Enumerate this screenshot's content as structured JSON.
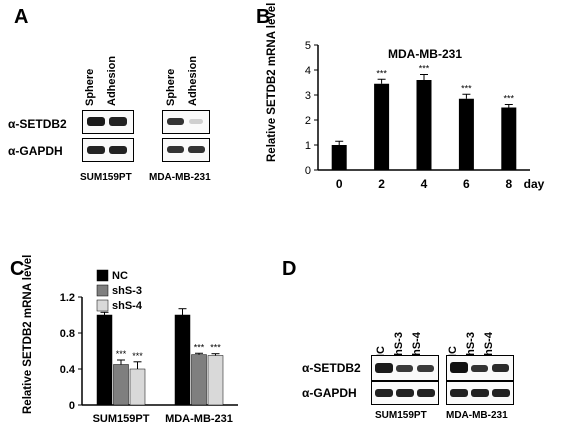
{
  "panels": {
    "A": {
      "letter": "A",
      "col_labels": [
        "Sphere",
        "Adhesion",
        "Sphere",
        "Adhesion"
      ],
      "row_labels": [
        "α-SETDB2",
        "α-GAPDH"
      ],
      "group_labels": [
        "SUM159PT",
        "MDA-MB-231"
      ]
    },
    "B": {
      "letter": "B"
    },
    "C": {
      "letter": "C"
    },
    "D": {
      "letter": "D",
      "col_labels": [
        "NC",
        "shS-3",
        "shS-4",
        "NC",
        "shS-3",
        "shS-4"
      ],
      "row_labels": [
        "α-SETDB2",
        "α-GAPDH"
      ],
      "group_labels": [
        "SUM159PT",
        "MDA-MB-231"
      ]
    }
  },
  "chart_data": [
    {
      "type": "bar",
      "title": "MDA-MB-231",
      "ylabel": "Relative SETDB2 mRNA level",
      "xlabel": "",
      "x_unit": "day",
      "categories": [
        "0",
        "2",
        "4",
        "6",
        "8"
      ],
      "values": [
        1.0,
        3.45,
        3.6,
        2.85,
        2.5
      ],
      "errors": [
        0.15,
        0.18,
        0.22,
        0.18,
        0.12
      ],
      "annotations": [
        "",
        "***",
        "***",
        "***",
        "***"
      ],
      "ylim": [
        0,
        5
      ],
      "yticks": [
        0,
        1,
        2,
        3,
        4,
        5
      ],
      "color": "#000000"
    },
    {
      "type": "bar",
      "title": "",
      "ylabel": "Relative SETDB2 mRNA level",
      "xlabel": "",
      "categories": [
        "SUM159PT",
        "MDA-MB-231"
      ],
      "series": [
        {
          "name": "NC",
          "values": [
            1.0,
            1.0
          ],
          "errors": [
            0.03,
            0.07
          ],
          "annotations": [
            "",
            ""
          ],
          "color": "#000000"
        },
        {
          "name": "shS-3",
          "values": [
            0.45,
            0.56
          ],
          "errors": [
            0.05,
            0.015
          ],
          "annotations": [
            "***",
            "***"
          ],
          "color": "#7f7f7f"
        },
        {
          "name": "shS-4",
          "values": [
            0.4,
            0.55
          ],
          "errors": [
            0.08,
            0.02
          ],
          "annotations": [
            "***",
            "***"
          ],
          "color": "#d9d9d9"
        }
      ],
      "ylim": [
        0,
        1.2
      ],
      "yticks": [
        0,
        0.4,
        0.8,
        1.2
      ],
      "legend": "top-left"
    }
  ]
}
